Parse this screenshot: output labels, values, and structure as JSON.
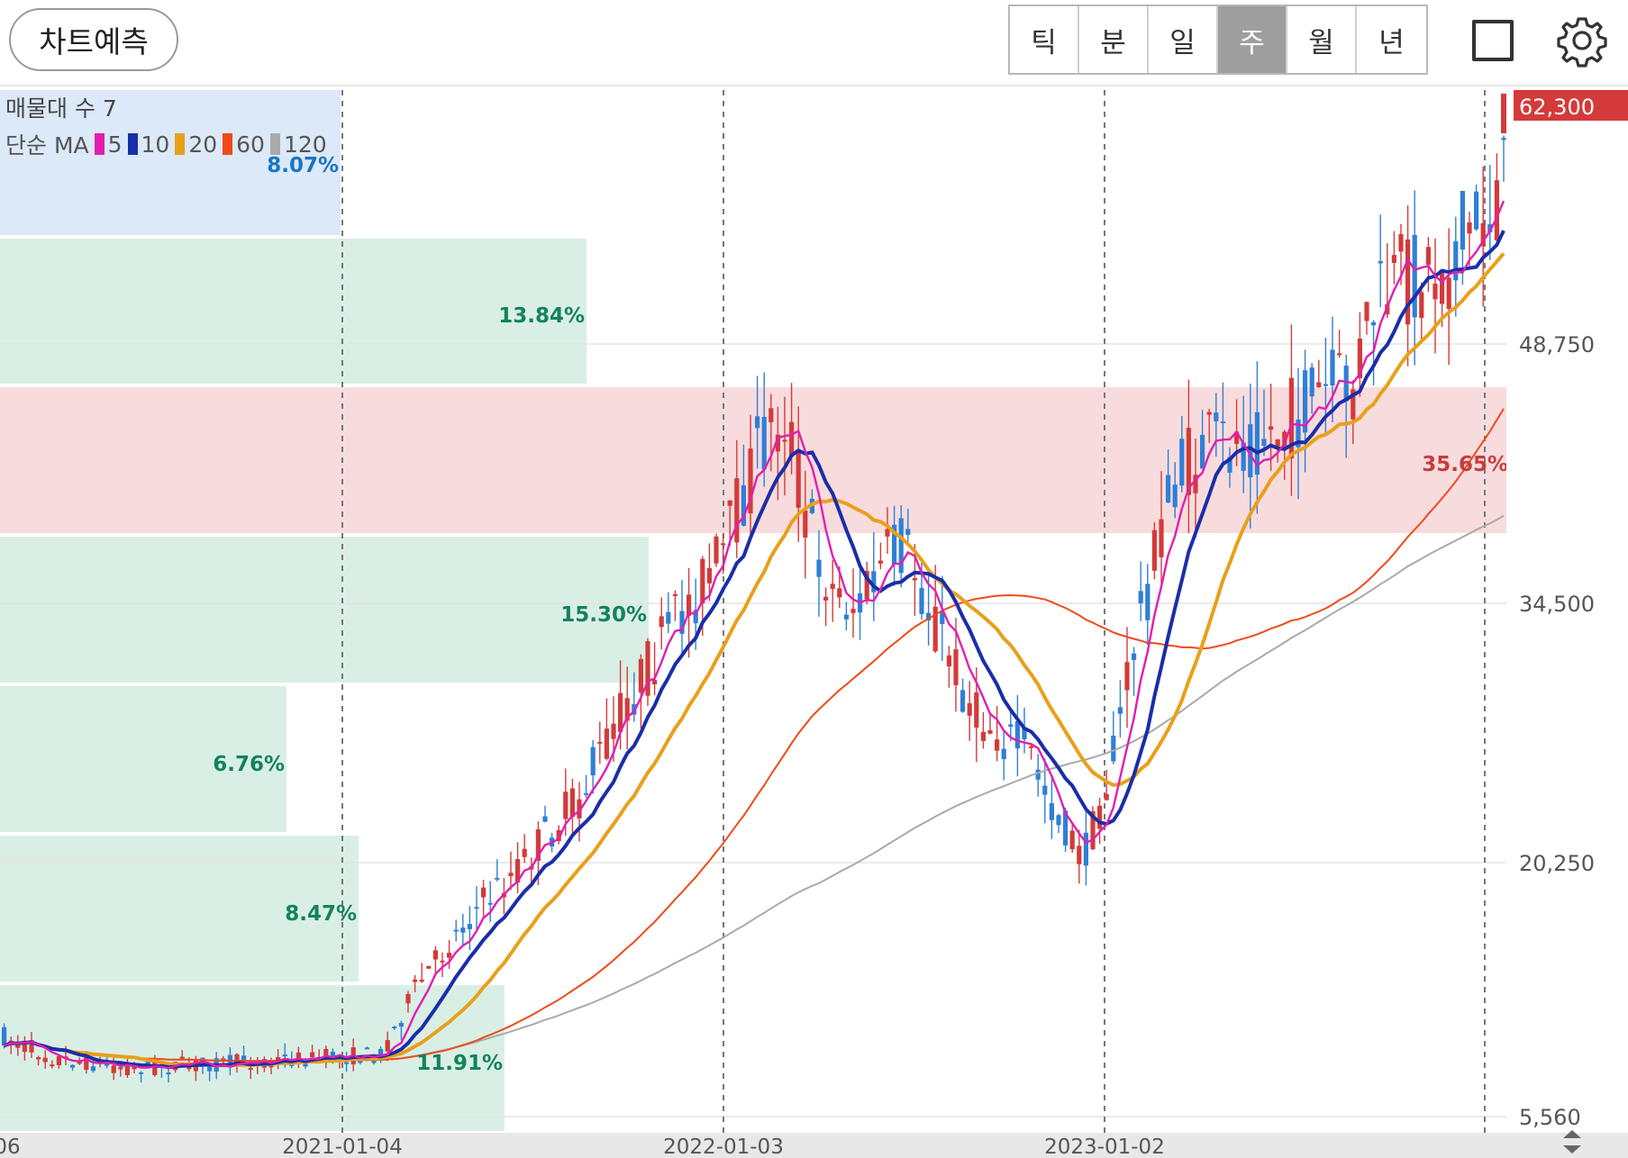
{
  "header": {
    "predict_button": "차트예측",
    "periods": [
      {
        "label": "틱",
        "active": false
      },
      {
        "label": "분",
        "active": false
      },
      {
        "label": "일",
        "active": false
      },
      {
        "label": "주",
        "active": true
      },
      {
        "label": "월",
        "active": false
      },
      {
        "label": "년",
        "active": false
      }
    ],
    "icons": [
      "square-icon",
      "gear-icon"
    ]
  },
  "overlay": {
    "volume_profile_label": "매물대 수 7",
    "ma_label": "단순 MA",
    "ma_periods": [
      {
        "label": "5",
        "color": "#e01fb0"
      },
      {
        "label": "10",
        "color": "#1a2ea8"
      },
      {
        "label": "20",
        "color": "#e8a01a"
      },
      {
        "label": "60",
        "color": "#f04a1a"
      },
      {
        "label": "120",
        "color": "#aaaaaa"
      }
    ]
  },
  "chart_data": {
    "type": "candlestick",
    "y_scale": "log",
    "y_ticks": [
      "48,750",
      "34,500",
      "20,250",
      "5,560"
    ],
    "x_ticks": [
      "06",
      "2021-01-04",
      "2022-01-03",
      "2023-01-02"
    ],
    "current_price": "62,300",
    "colors": {
      "up": "#d43a3a",
      "down": "#2f7fd6",
      "ma5": "#e01fb0",
      "ma10": "#1a2ea8",
      "ma20": "#e8a01a",
      "ma60": "#f04a1a",
      "ma120": "#aaaaaa",
      "profile_green": "#d9efe5",
      "profile_blue": "#dbe9f8",
      "profile_red": "#f8dcdd"
    },
    "volume_profile": [
      {
        "label": "8.07%",
        "pct": 8.07,
        "color": "#1a75c4",
        "high": true
      },
      {
        "label": "13.84%",
        "pct": 13.84,
        "color": "#14825a"
      },
      {
        "label": "35.65%",
        "pct": 35.65,
        "color": "#c83c3c",
        "max": true
      },
      {
        "label": "15.30%",
        "pct": 15.3,
        "color": "#14825a"
      },
      {
        "label": "6.76%",
        "pct": 6.76,
        "color": "#14825a"
      },
      {
        "label": "8.47%",
        "pct": 8.47,
        "color": "#14825a"
      },
      {
        "label": "11.91%",
        "pct": 11.91,
        "color": "#14825a"
      }
    ]
  }
}
